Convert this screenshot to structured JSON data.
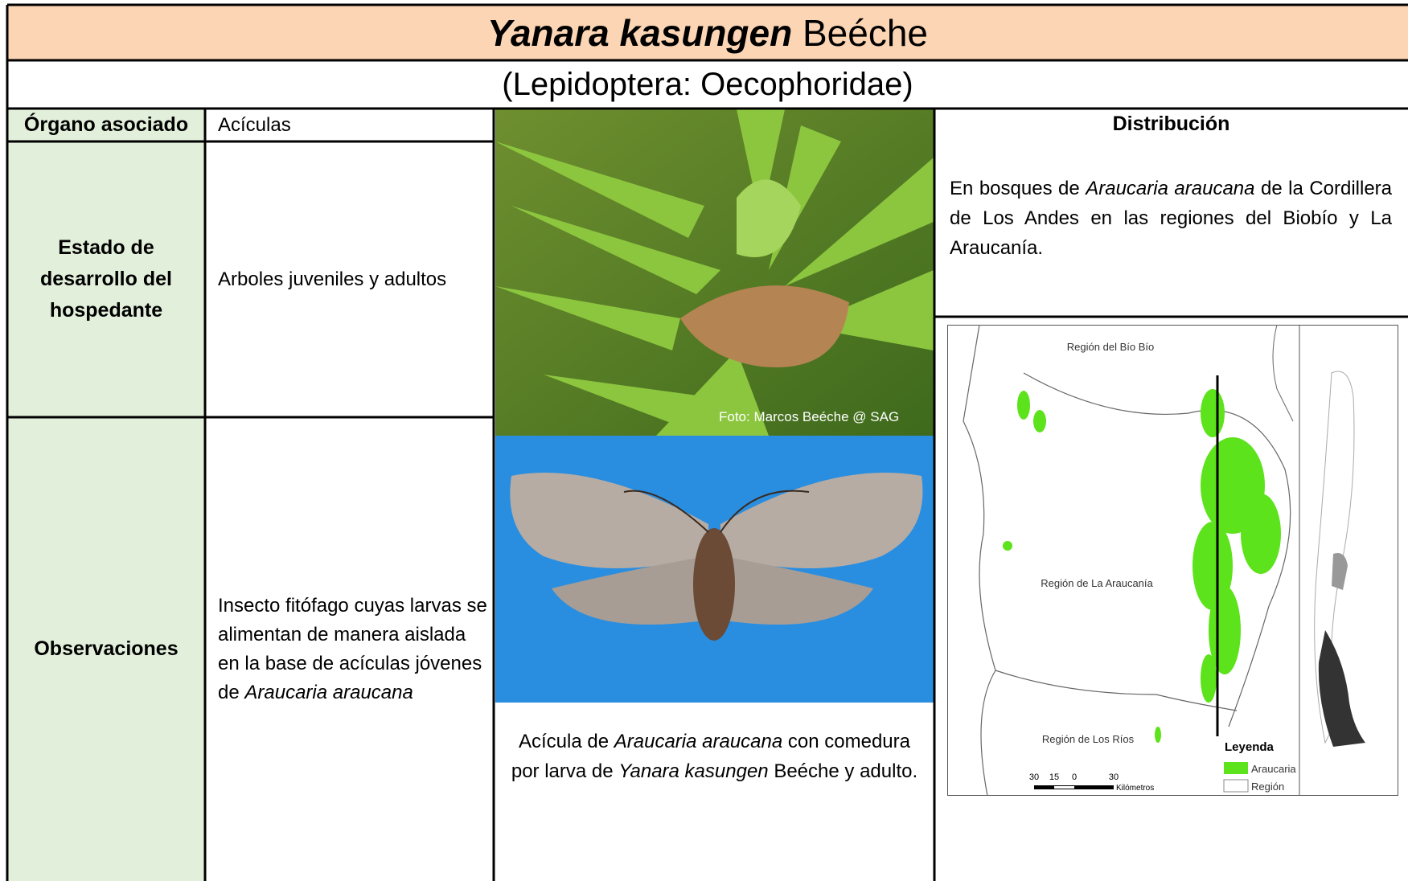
{
  "header": {
    "species": "Yanara kasungen",
    "author": "Beéche",
    "order": "(Lepidoptera: Oecophoridae)"
  },
  "rows": [
    {
      "label": "Órgano asociado",
      "value": "Acículas"
    },
    {
      "label": "Estado de desarrollo del hospedante",
      "value": "Arboles juveniles y adultos"
    },
    {
      "label": "Observaciones",
      "value": [
        "Insecto fitófago cuyas larvas se alimentan de manera aislada en  la base de acículas jóvenes de",
        "Araucaria araucana"
      ]
    }
  ],
  "photo_credit": "Foto: Marcos Beéche @ SAG",
  "caption": [
    "Acícula de",
    "Araucaria araucana",
    "con comedura por larva de",
    "Yanara kasungen",
    "Beéche y adulto."
  ],
  "distribution": {
    "title": "Distribución",
    "text": [
      "En bosques de",
      "Araucaria araucana",
      "de la Cordillera de Los Andes en las regiones del Biobío y La Araucanía."
    ]
  },
  "map": {
    "regions": [
      "Región del Bío Bío",
      "Región de La Araucanía",
      "Región de Los Ríos"
    ],
    "legend_title": "Leyenda",
    "legend": [
      "Araucaria",
      "Región"
    ],
    "scale": [
      "30",
      "15",
      "0",
      "30"
    ],
    "scale_unit": "Kilómetros"
  }
}
